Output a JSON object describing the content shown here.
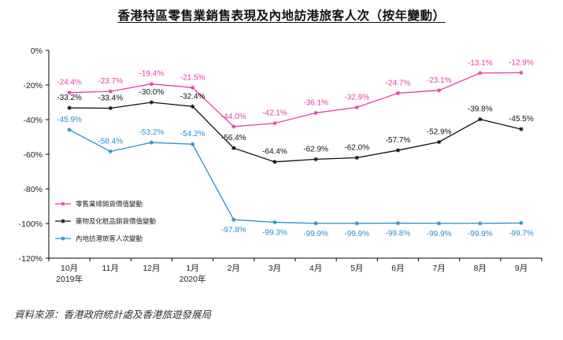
{
  "title": "香港特區零售業銷售表現及內地訪港旅客人次（按年變動）",
  "source": "資料來源：香港政府統計處及香港旅遊發展局",
  "chart_data": {
    "type": "line",
    "categories": [
      "10月",
      "11月",
      "12月",
      "1月",
      "2月",
      "3月",
      "4月",
      "5月",
      "6月",
      "7月",
      "8月",
      "9月"
    ],
    "year_labels": [
      "2019年",
      "",
      "",
      "2020年",
      "",
      "",
      "",
      "",
      "",
      "",
      "",
      ""
    ],
    "ylim": [
      -120,
      0
    ],
    "yticks": [
      0,
      -20,
      -40,
      -60,
      -80,
      -100,
      -120
    ],
    "ytick_labels": [
      "0%",
      "-20%",
      "-40%",
      "-60%",
      "-80%",
      "-100%",
      "-120%"
    ],
    "grid": false,
    "legend_position": "left",
    "series": [
      {
        "name": "零售業總銷貨價值變動",
        "color": "#e63fa6",
        "values": [
          -24.4,
          -23.7,
          -19.4,
          -21.5,
          -44.0,
          -42.1,
          -36.1,
          -32.9,
          -24.7,
          -23.1,
          -13.1,
          -12.9
        ],
        "labels": [
          "-24.4%",
          "-23.7%",
          "-19.4%",
          "-21.5%",
          "-44.0%",
          "-42.1%",
          "-36.1%",
          "-32.9%",
          "-24.7%",
          "-23.1%",
          "-13.1%",
          "-12.9%"
        ]
      },
      {
        "name": "藥物及化粧品銷貨價值變動",
        "color": "#111111",
        "values": [
          -33.2,
          -33.4,
          -30.0,
          -32.4,
          -56.4,
          -64.4,
          -62.9,
          -62.0,
          -57.7,
          -52.9,
          -39.8,
          -45.5
        ],
        "labels": [
          "-33.2%",
          "-33.4%",
          "-30.0%",
          "-32.4%",
          "-56.4%",
          "-64.4%",
          "-62.9%",
          "-62.0%",
          "-57.7%",
          "-52.9%",
          "-39.8%",
          "-45.5%"
        ]
      },
      {
        "name": "內地訪港旅客人次變動",
        "color": "#2a8fc8",
        "values": [
          -45.9,
          -58.4,
          -53.2,
          -54.2,
          -97.8,
          -99.3,
          -99.9,
          -99.9,
          -99.8,
          -99.9,
          -99.9,
          -99.7
        ],
        "labels": [
          "-45.9%",
          "-58.4%",
          "-53.2%",
          "-54.2%",
          "-97.8%",
          "-99.3%",
          "-99.9%",
          "-99.9%",
          "-99.8%",
          "-99.9%",
          "-99.9%",
          "-99.7%"
        ]
      }
    ]
  }
}
